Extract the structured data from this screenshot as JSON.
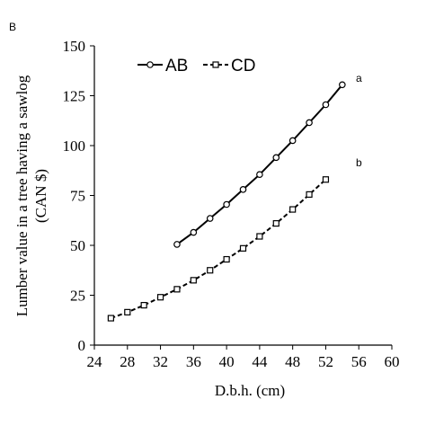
{
  "chart_data": {
    "type": "line",
    "panel_label": "B",
    "xlabel": "D.b.h. (cm)",
    "ylabel_line1": "Lumber value in a tree having a sawlog",
    "ylabel_line2": "(CAN $)",
    "xlim": [
      24,
      60
    ],
    "ylim": [
      0,
      150
    ],
    "xticks": [
      24,
      28,
      32,
      36,
      40,
      44,
      48,
      52,
      56,
      60
    ],
    "yticks": [
      0,
      25,
      50,
      75,
      100,
      125,
      150
    ],
    "grid": false,
    "legend_position": "top-left",
    "series": [
      {
        "name": "AB",
        "marker": "circle",
        "line_style": "solid",
        "annotation": "a",
        "x": [
          34,
          36,
          38,
          40,
          42,
          44,
          46,
          48,
          50,
          52,
          54
        ],
        "y": [
          50.5,
          56.5,
          63.5,
          70.5,
          78,
          85.5,
          94,
          102.5,
          111.5,
          120.5,
          130.5
        ]
      },
      {
        "name": "CD",
        "marker": "square",
        "line_style": "dashed",
        "annotation": "b",
        "x": [
          26,
          28,
          30,
          32,
          34,
          36,
          38,
          40,
          42,
          44,
          46,
          48,
          50,
          52
        ],
        "y": [
          13.5,
          16.5,
          20,
          24,
          28,
          32.5,
          37.5,
          43,
          48.5,
          54.5,
          61,
          68,
          75.5,
          83
        ]
      }
    ]
  }
}
